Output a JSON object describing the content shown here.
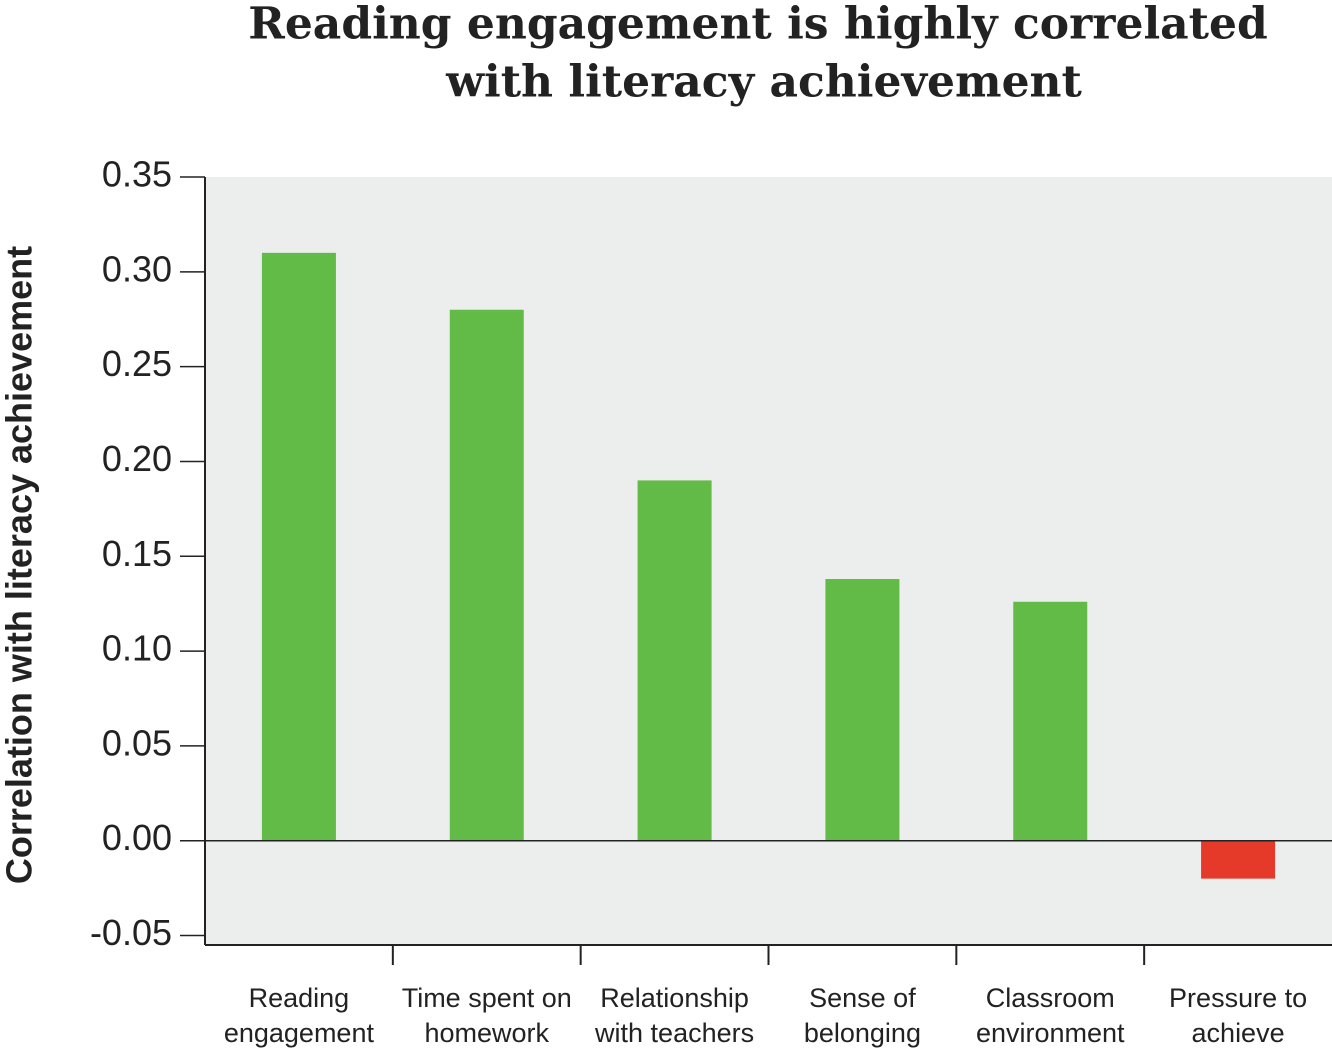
{
  "chart_data": {
    "type": "bar",
    "title": [
      "Reading engagement is highly correlated",
      "with literacy achievement"
    ],
    "y_label": "Correlation with literacy achievement",
    "categories": [
      [
        "Reading",
        "engagement"
      ],
      [
        "Time spent on",
        "homework"
      ],
      [
        "Relationship",
        "with teachers"
      ],
      [
        "Sense of",
        "belonging"
      ],
      [
        "Classroom",
        "environment"
      ],
      [
        "Pressure to",
        "achieve"
      ]
    ],
    "values": [
      0.31,
      0.28,
      0.19,
      0.138,
      0.126,
      -0.02
    ],
    "colors": [
      "#62bb47",
      "#62bb47",
      "#62bb47",
      "#62bb47",
      "#62bb47",
      "#e5392a"
    ],
    "ylim": [
      -0.055,
      0.35
    ],
    "yticks": [
      {
        "value": -0.05,
        "label": "-0.05"
      },
      {
        "value": 0,
        "label": "0.00"
      },
      {
        "value": 0.05,
        "label": "0.05"
      },
      {
        "value": 0.1,
        "label": "0.10"
      },
      {
        "value": 0.15,
        "label": "0.15"
      },
      {
        "value": 0.2,
        "label": "0.20"
      },
      {
        "value": 0.25,
        "label": "0.25"
      },
      {
        "value": 0.3,
        "label": "0.30"
      },
      {
        "value": 0.35,
        "label": "0.35"
      }
    ],
    "grid": false
  }
}
